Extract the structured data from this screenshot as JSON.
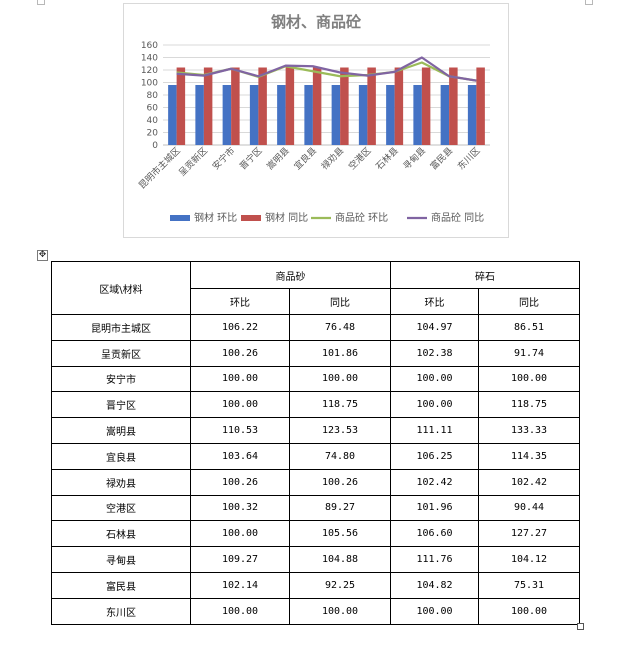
{
  "chart_data": {
    "type": "bar",
    "title": "钢材、商品砼",
    "categories": [
      "昆明市主城区",
      "呈贡新区",
      "安宁市",
      "晋宁区",
      "嵩明县",
      "宜良县",
      "禄劝县",
      "空港区",
      "石林县",
      "寻甸县",
      "富民县",
      "东川区"
    ],
    "ylim": [
      0,
      160
    ],
    "yticks": [
      0,
      20,
      40,
      60,
      80,
      100,
      120,
      140,
      160
    ],
    "grid": true,
    "legend_position": "bottom",
    "series": [
      {
        "name": "钢材 环比",
        "kind": "bar",
        "color": "#4472c4",
        "values": [
          96,
          96,
          96,
          96,
          96,
          96,
          96,
          96,
          96,
          96,
          96,
          96
        ]
      },
      {
        "name": "钢材 同比",
        "kind": "bar",
        "color": "#c0504d",
        "values": [
          124,
          124,
          124,
          124,
          124,
          124,
          124,
          124,
          124,
          124,
          124,
          124
        ]
      },
      {
        "name": "商品砼 环比",
        "kind": "line",
        "color": "#9bbb59",
        "values": [
          116,
          112,
          122,
          109,
          126,
          118,
          110,
          112,
          117,
          132,
          110,
          103
        ]
      },
      {
        "name": "商品砼 同比",
        "kind": "line",
        "color": "#8064a2",
        "values": [
          114,
          111,
          122,
          110,
          127,
          126,
          116,
          111,
          117,
          140,
          110,
          103
        ]
      }
    ]
  },
  "table": {
    "corner_header": "区域\\材料",
    "groups": [
      "商品砂",
      "碎石"
    ],
    "sub_headers": [
      "环比",
      "同比",
      "环比",
      "同比"
    ],
    "rows": [
      {
        "region": "昆明市主城区",
        "values": [
          "106.22",
          "76.48",
          "104.97",
          "86.51"
        ]
      },
      {
        "region": "呈贡新区",
        "values": [
          "100.26",
          "101.86",
          "102.38",
          "91.74"
        ]
      },
      {
        "region": "安宁市",
        "values": [
          "100.00",
          "100.00",
          "100.00",
          "100.00"
        ]
      },
      {
        "region": "晋宁区",
        "values": [
          "100.00",
          "118.75",
          "100.00",
          "118.75"
        ]
      },
      {
        "region": "嵩明县",
        "values": [
          "110.53",
          "123.53",
          "111.11",
          "133.33"
        ]
      },
      {
        "region": "宜良县",
        "values": [
          "103.64",
          "74.80",
          "106.25",
          "114.35"
        ]
      },
      {
        "region": "禄劝县",
        "values": [
          "100.26",
          "100.26",
          "102.42",
          "102.42"
        ]
      },
      {
        "region": "空港区",
        "values": [
          "100.32",
          "89.27",
          "101.96",
          "90.44"
        ]
      },
      {
        "region": "石林县",
        "values": [
          "100.00",
          "105.56",
          "106.60",
          "127.27"
        ]
      },
      {
        "region": "寻甸县",
        "values": [
          "109.27",
          "104.88",
          "111.76",
          "104.12"
        ]
      },
      {
        "region": "富民县",
        "values": [
          "102.14",
          "92.25",
          "104.82",
          "75.31"
        ]
      },
      {
        "region": "东川区",
        "values": [
          "100.00",
          "100.00",
          "100.00",
          "100.00"
        ]
      }
    ]
  }
}
